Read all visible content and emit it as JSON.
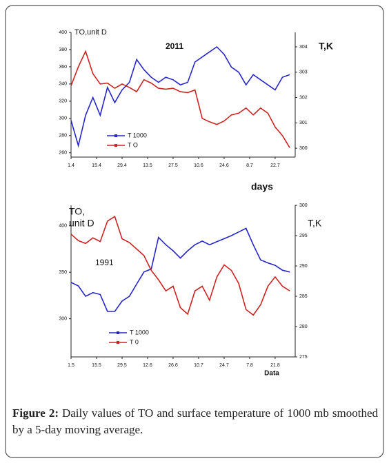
{
  "chart_data": [
    {
      "type": "line",
      "title": "2011",
      "ylabel": "TO,unit D",
      "y2label": "T,K",
      "xlabel": "days",
      "x": [
        0,
        4,
        8,
        12,
        16,
        20,
        24,
        28,
        32,
        36,
        40,
        44,
        48,
        52,
        56,
        60,
        64,
        68,
        72,
        76,
        80,
        84,
        88,
        92,
        96,
        100,
        104,
        108,
        112,
        116,
        120
      ],
      "xlim": [
        0,
        123
      ],
      "xticks": [
        {
          "value": 0,
          "label": "1.4"
        },
        {
          "value": 14,
          "label": "15.4"
        },
        {
          "value": 28,
          "label": "29.4"
        },
        {
          "value": 42,
          "label": "13.5"
        },
        {
          "value": 56,
          "label": "27.5"
        },
        {
          "value": 70,
          "label": "10.6"
        },
        {
          "value": 84,
          "label": "24.6"
        },
        {
          "value": 98,
          "label": "8.7"
        },
        {
          "value": 112,
          "label": "22.7"
        }
      ],
      "ylim": [
        255,
        400
      ],
      "yticks": [
        400,
        380,
        360,
        340,
        320,
        300,
        280,
        260
      ],
      "y2lim": [
        299.65,
        304.57
      ],
      "y2ticks": [
        304,
        303,
        302,
        301,
        300
      ],
      "series": [
        {
          "name": "T 1000",
          "color": "#2626c8",
          "axis": "y2",
          "values": [
            301.1,
            300.1,
            301.3,
            302.0,
            301.3,
            302.4,
            301.8,
            302.3,
            302.6,
            303.5,
            303.1,
            302.8,
            302.6,
            302.8,
            302.7,
            302.5,
            302.6,
            303.4,
            303.6,
            303.8,
            304.0,
            303.7,
            303.2,
            303.0,
            302.5,
            302.9,
            302.7,
            302.5,
            302.3,
            302.8,
            302.9
          ]
        },
        {
          "name": "T O",
          "color": "#cc2222",
          "values": [
            338,
            360,
            378,
            352,
            340,
            341,
            335,
            340,
            336,
            331,
            345,
            341,
            335,
            334,
            335,
            331,
            330,
            333,
            300,
            296,
            293,
            297,
            304,
            306,
            312,
            304,
            312,
            306,
            290,
            280,
            266
          ]
        }
      ]
    },
    {
      "type": "line",
      "title": "1991",
      "ylabel": [
        "TO,",
        "unit D"
      ],
      "y2label": "T,K",
      "xlabel": "Data",
      "x": [
        0,
        4,
        8,
        12,
        16,
        20,
        24,
        28,
        32,
        36,
        40,
        44,
        48,
        52,
        56,
        60,
        64,
        68,
        72,
        76,
        80,
        84,
        88,
        92,
        96,
        100,
        104,
        108,
        112,
        116,
        120
      ],
      "xlim": [
        0,
        123
      ],
      "xticks": [
        {
          "value": 0,
          "label": "1.5"
        },
        {
          "value": 14,
          "label": "15.5"
        },
        {
          "value": 28,
          "label": "29.5"
        },
        {
          "value": 42,
          "label": "12.6"
        },
        {
          "value": 56,
          "label": "26.6"
        },
        {
          "value": 70,
          "label": "10.7"
        },
        {
          "value": 84,
          "label": "24.7"
        },
        {
          "value": 98,
          "label": "7.8"
        },
        {
          "value": 112,
          "label": "21.8"
        }
      ],
      "ylim": [
        259,
        422
      ],
      "yticks": [
        400,
        350,
        300
      ],
      "y2lim": [
        275,
        300
      ],
      "y2ticks": [
        300,
        295,
        290,
        285,
        280,
        275
      ],
      "series": [
        {
          "name": "T 1000",
          "color": "#2626c8",
          "axis": "y2",
          "values": [
            287.3,
            286.7,
            285.0,
            285.6,
            285.3,
            282.5,
            282.5,
            284.2,
            285.0,
            287.0,
            289.0,
            289.5,
            294.7,
            293.5,
            292.5,
            291.3,
            292.5,
            293.5,
            294.1,
            293.5,
            294.0,
            294.5,
            295.0,
            295.6,
            296.2,
            293.5,
            291.0,
            290.5,
            290.1,
            289.3,
            289.0
          ]
        },
        {
          "name": "T 0",
          "color": "#cc2222",
          "values": [
            391,
            384,
            381,
            387,
            383,
            405,
            410,
            386,
            382,
            375,
            368,
            352,
            342,
            330,
            335,
            312,
            305,
            330,
            335,
            320,
            345,
            358,
            352,
            338,
            310,
            304,
            315,
            335,
            345,
            335,
            330
          ]
        }
      ]
    }
  ],
  "caption": {
    "label": "Figure 2:",
    "text": "Daily values of TO and surface temperature of 1000 mb smoothed by a 5-day moving average."
  }
}
